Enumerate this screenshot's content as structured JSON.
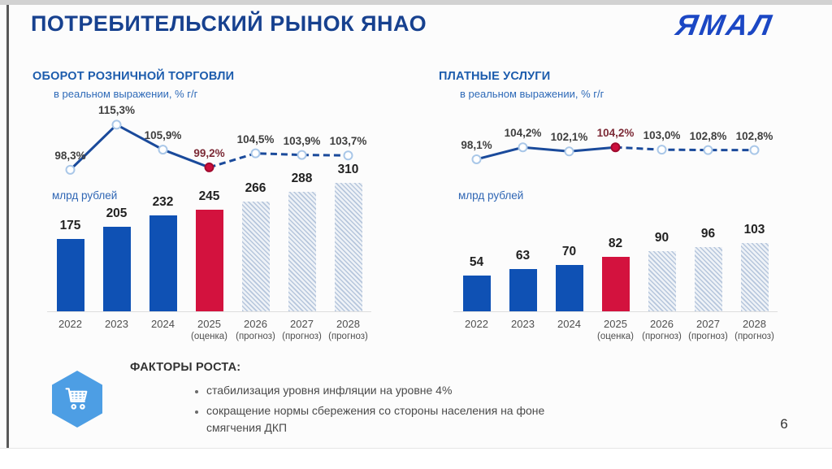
{
  "page": {
    "title": "ПОТРЕБИТЕЛЬСКИЙ РЫНОК ЯНАО",
    "logo_text": "ЯМАЛ",
    "page_number": "6"
  },
  "factors": {
    "heading": "ФАКТОРЫ РОСТА:",
    "icon": "shopping-cart-icon",
    "items": [
      "стабилизация уровня инфляции на уровне 4%",
      "сокращение нормы сбережения со стороны населения на фоне смягчения ДКП"
    ]
  },
  "colors": {
    "title_blue": "#17418f",
    "section_blue": "#1c5cad",
    "subtitle_blue": "#2e6ab8",
    "logo_blue": "#1b47c4",
    "line": "#1a4a9b",
    "marker_stroke": "#a9c7e8",
    "estimate": "#ce0e3c",
    "estimate_dark": "#a00b2e",
    "estimate_label": "#7c2a36",
    "bar_blue": "#0f51b4",
    "bar_red": "#d3123e",
    "hatch_fg": "#b6c6dc",
    "hatch_bg": "#eef2f7",
    "hexagon_blue": "#4d9ee4"
  },
  "chart_data": [
    {
      "type": "bar+line",
      "title": "ОБОРОТ РОЗНИЧНОЙ ТОРГОВЛИ",
      "subtitle": "в реальном выражении, % г/г",
      "bar_units": "млрд рублей",
      "categories": [
        "2022",
        "2023",
        "2024",
        "2025",
        "2026",
        "2027",
        "2028"
      ],
      "category_notes": [
        "",
        "",
        "",
        "(оценка)",
        "(прогноз)",
        "(прогноз)",
        "(прогноз)"
      ],
      "bars": {
        "name": "млрд рублей",
        "values": [
          175,
          205,
          232,
          245,
          266,
          288,
          310
        ]
      },
      "line": {
        "name": "в реальном выражении, % г/г",
        "values": [
          98.3,
          115.3,
          105.9,
          99.2,
          104.5,
          103.9,
          103.7
        ],
        "labels": [
          "98,3%",
          "115,3%",
          "105,9%",
          "99,2%",
          "104,5%",
          "103,9%",
          "103,7%"
        ]
      },
      "estimate_index": 3,
      "forecast_from_index": 4,
      "line_ylim": [
        95.5,
        118.5
      ],
      "bar_ylim": [
        0,
        330
      ],
      "legend": "off",
      "grid": "off"
    },
    {
      "type": "bar+line",
      "title": "ПЛАТНЫЕ УСЛУГИ",
      "subtitle": "в реальном выражении, % г/г",
      "bar_units": "млрд рублей",
      "categories": [
        "2022",
        "2023",
        "2024",
        "2025",
        "2026",
        "2027",
        "2028"
      ],
      "category_notes": [
        "",
        "",
        "",
        "(оценка)",
        "(прогноз)",
        "(прогноз)",
        "(прогноз)"
      ],
      "bars": {
        "name": "млрд рублей",
        "values": [
          54,
          63,
          70,
          82,
          90,
          96,
          103
        ]
      },
      "line": {
        "name": "в реальном выражении, % г/г",
        "values": [
          98.1,
          104.2,
          102.1,
          104.2,
          103.0,
          102.8,
          102.8
        ],
        "labels": [
          "98,1%",
          "104,2%",
          "102,1%",
          "104,2%",
          "103,0%",
          "102,8%",
          "102,8%"
        ]
      },
      "estimate_index": 3,
      "forecast_from_index": 4,
      "line_ylim": [
        89,
        120
      ],
      "bar_ylim": [
        0,
        205
      ],
      "legend": "off",
      "grid": "off"
    }
  ]
}
